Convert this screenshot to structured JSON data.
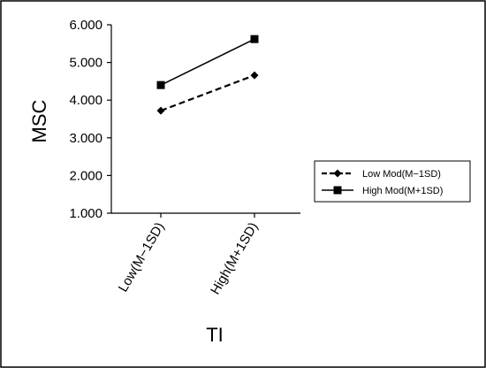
{
  "chart_data": {
    "type": "line",
    "xlabel": "TI",
    "ylabel": "MSC",
    "categories": [
      "Low(M−1SD)",
      "High(M+1SD)"
    ],
    "ylim": [
      1.0,
      6.0
    ],
    "yticks": [
      "1.000",
      "2.000",
      "3.000",
      "4.000",
      "5.000",
      "6.000"
    ],
    "grid": false,
    "legend_position": "right",
    "series": [
      {
        "name": "Low Mod(M−1SD)",
        "values": [
          3.72,
          4.66
        ],
        "line_style": "dashed",
        "marker": "diamond",
        "color": "#000000"
      },
      {
        "name": "High Mod(M+1SD)",
        "values": [
          4.4,
          5.62
        ],
        "line_style": "solid",
        "marker": "square",
        "color": "#000000"
      }
    ]
  }
}
